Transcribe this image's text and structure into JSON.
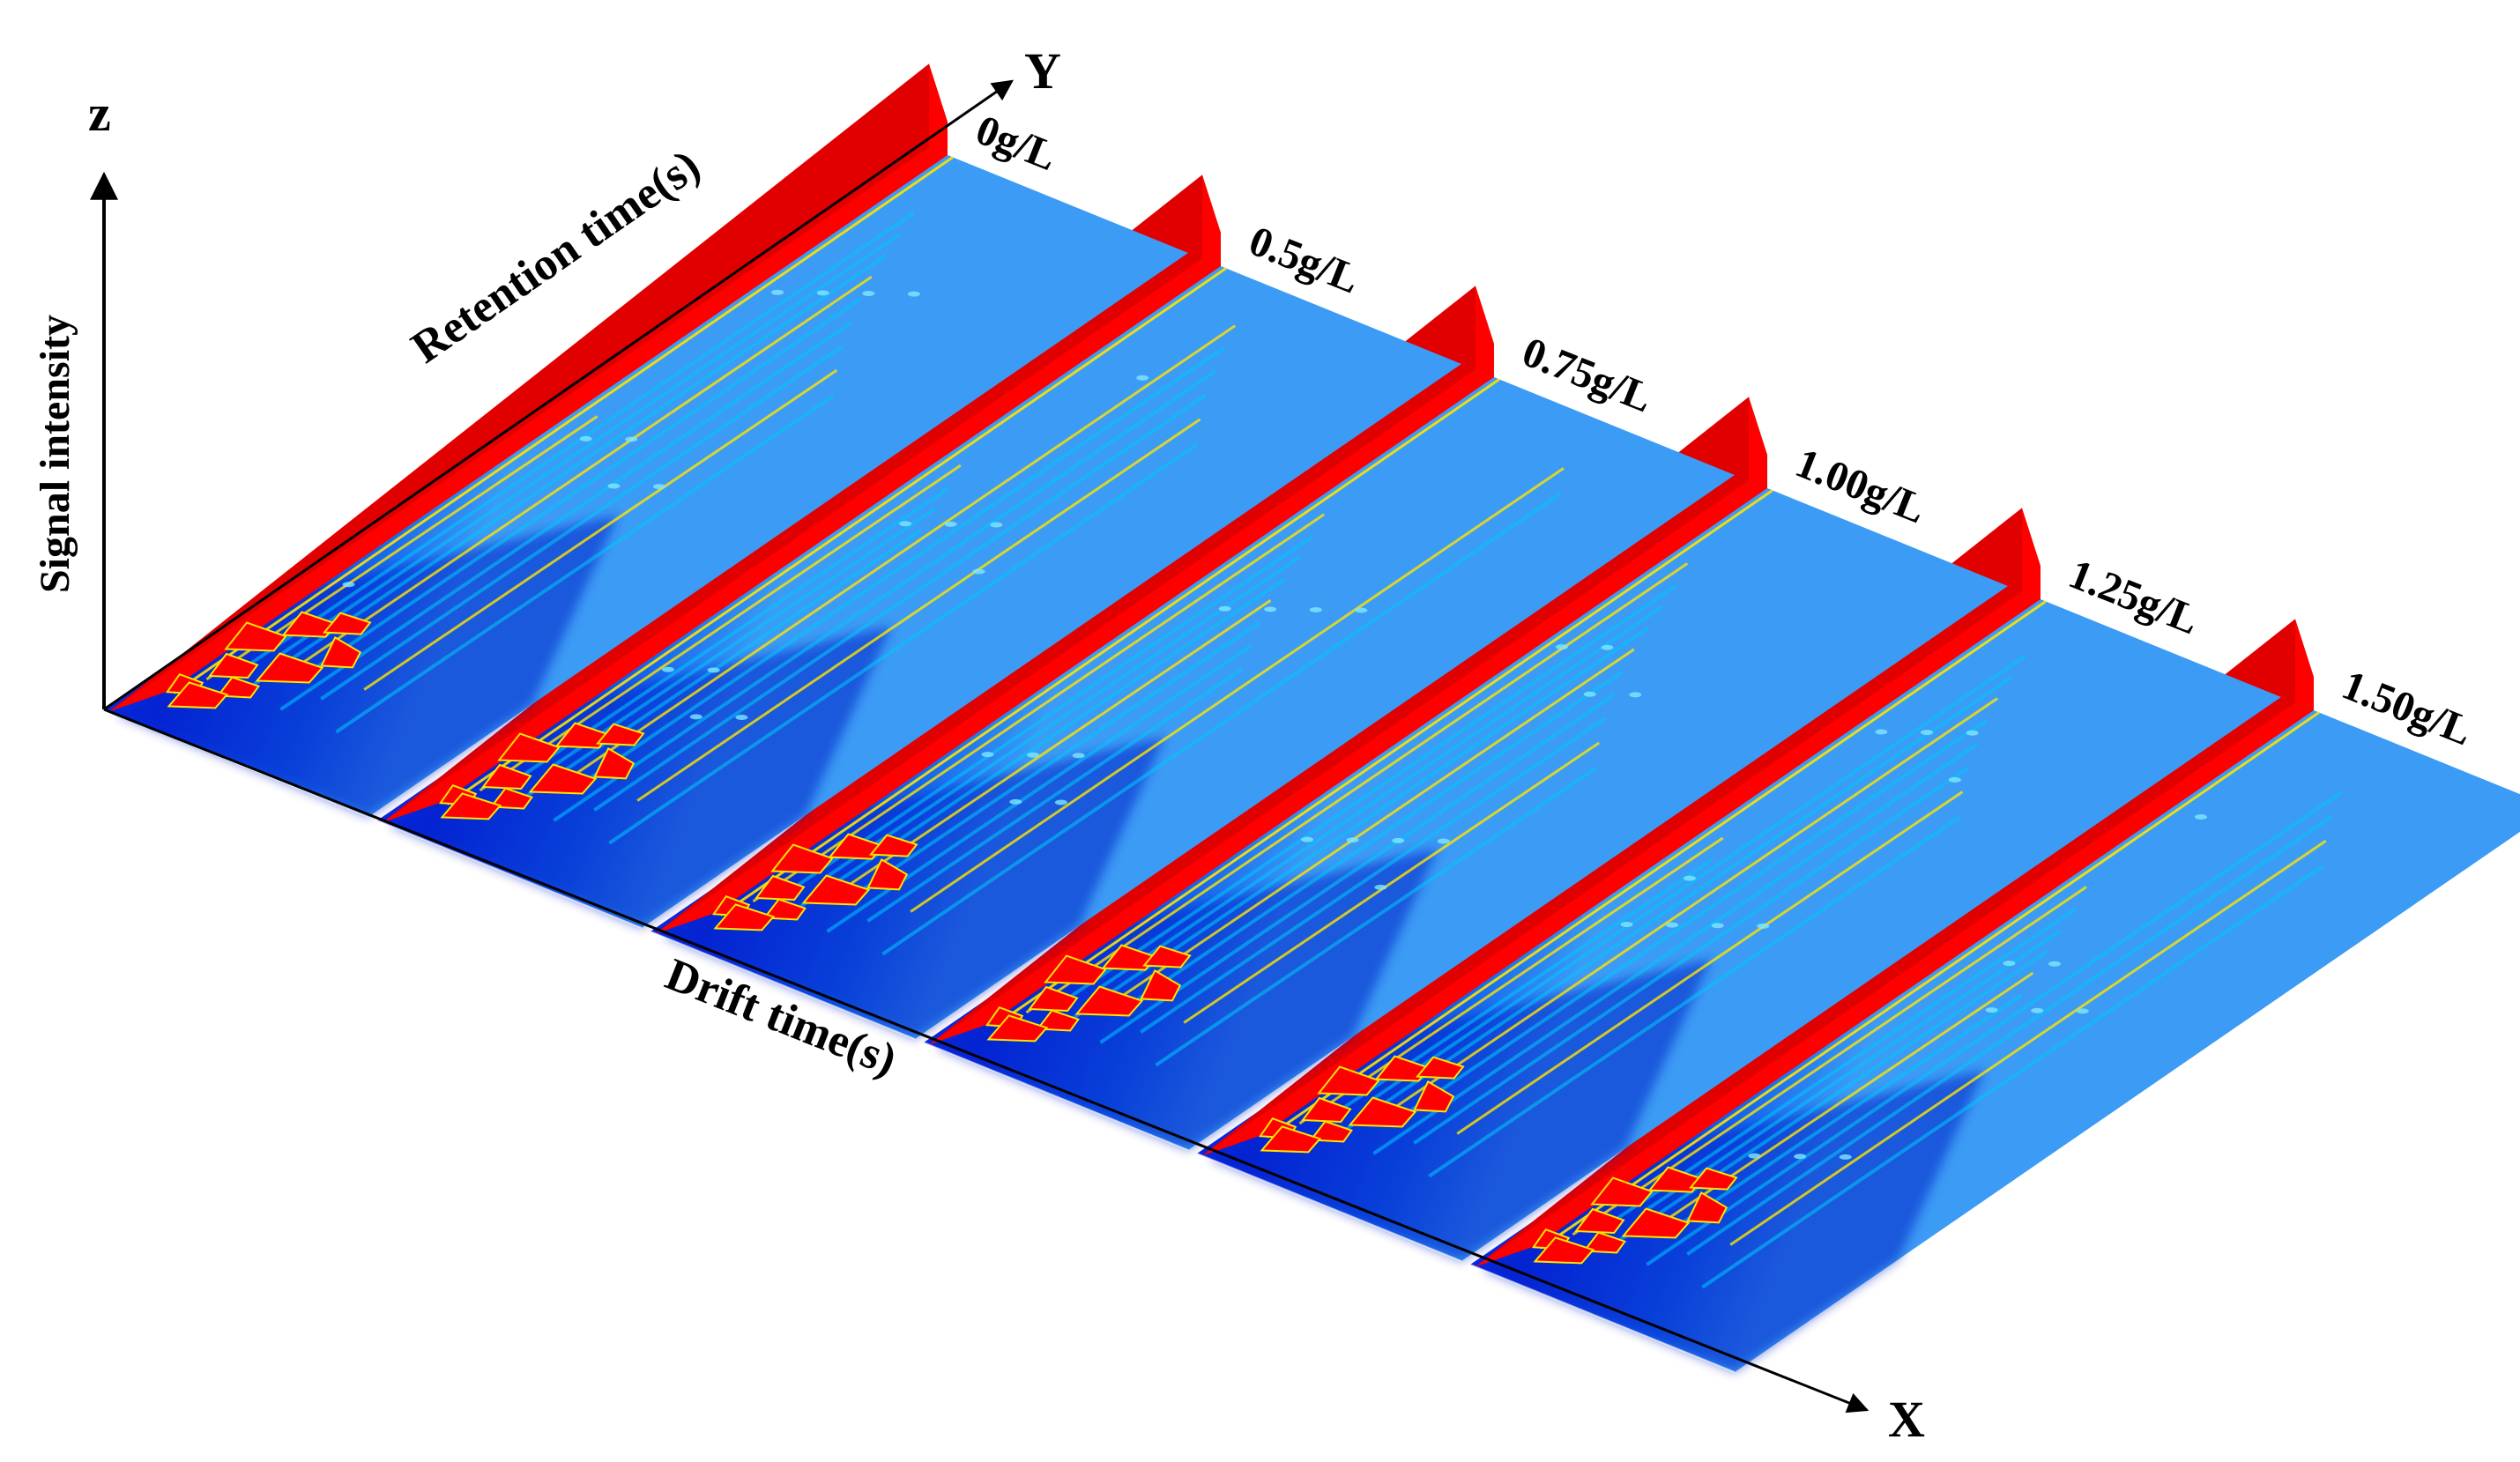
{
  "chart_data": {
    "type": "3d-spectrum-waterfall",
    "axes": {
      "x": {
        "letter": "X",
        "label": "Drift time(s)"
      },
      "y": {
        "letter": "Y",
        "label": "Retention time(s)"
      },
      "z": {
        "letter": "z",
        "label": "Signal intensity"
      }
    },
    "series": [
      {
        "name": "0g/L"
      },
      {
        "name": "0.5g/L"
      },
      {
        "name": "0.75g/L"
      },
      {
        "name": "1.00g/L"
      },
      {
        "name": "1.25g/L"
      },
      {
        "name": "1.50g/L"
      }
    ],
    "colormap": {
      "low": "#0a32e6",
      "mid_low": "#00c8ff",
      "mid": "#ffe400",
      "high": "#ff0000"
    },
    "grid": false,
    "legend": "none"
  }
}
